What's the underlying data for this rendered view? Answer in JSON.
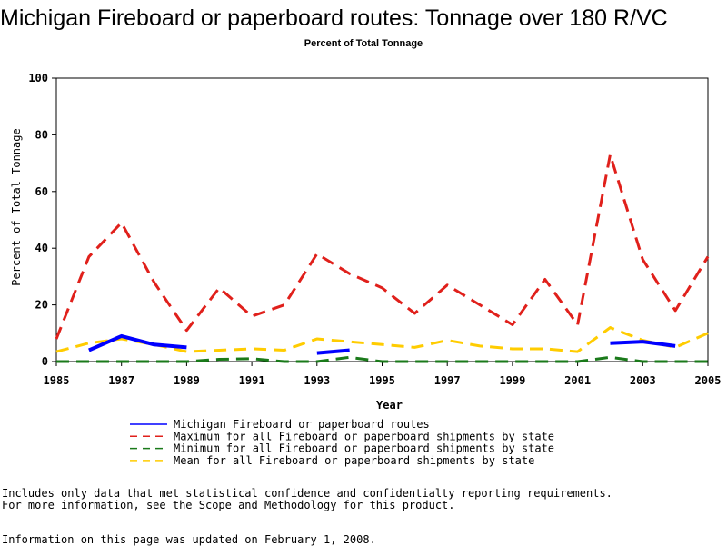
{
  "chart_data": {
    "type": "line",
    "title": "Michigan Fireboard or paperboard routes: Tonnage over 180 R/VC",
    "subtitle": "Percent of Total Tonnage",
    "xlabel": "Year",
    "ylabel": "Percent of Total Tonnage",
    "xlim": [
      1985,
      2005
    ],
    "ylim": [
      0,
      100
    ],
    "xticks": [
      "1985",
      "1987",
      "1989",
      "1991",
      "1993",
      "1995",
      "1997",
      "1999",
      "2001",
      "2003",
      "2005"
    ],
    "yticks": [
      "0",
      "20",
      "40",
      "60",
      "80",
      "100"
    ],
    "grid": false,
    "legend_position": "bottom",
    "series": [
      {
        "name": "Michigan Fireboard or paperboard routes",
        "color": "#0000ff",
        "style": "solid",
        "points": [
          [
            1986,
            4
          ],
          [
            1987,
            9
          ],
          [
            1988,
            6
          ],
          [
            1989,
            5
          ],
          [
            null,
            null
          ],
          [
            1993,
            3
          ],
          [
            1994,
            4
          ],
          [
            null,
            null
          ],
          [
            2002,
            6.5
          ],
          [
            2003,
            7
          ],
          [
            2004,
            5.5
          ]
        ]
      },
      {
        "name": "Maximum for all Fireboard or paperboard shipments by state",
        "color": "#e0201b",
        "style": "dashed",
        "points": [
          [
            1985,
            8
          ],
          [
            1986,
            37
          ],
          [
            1987,
            49
          ],
          [
            1988,
            28
          ],
          [
            1989,
            11
          ],
          [
            1990,
            26
          ],
          [
            1991,
            16
          ],
          [
            1992,
            20
          ],
          [
            1993,
            38
          ],
          [
            1994,
            31
          ],
          [
            1995,
            26
          ],
          [
            1996,
            17
          ],
          [
            1997,
            27
          ],
          [
            1998,
            20
          ],
          [
            1999,
            13
          ],
          [
            2000,
            29
          ],
          [
            2001,
            13
          ],
          [
            2002,
            73
          ],
          [
            2003,
            36
          ],
          [
            2004,
            18
          ],
          [
            2005,
            37
          ]
        ]
      },
      {
        "name": "Minimum for all Fireboard or paperboard shipments by state",
        "color": "#1a7a1a",
        "style": "dashed",
        "points": [
          [
            1985,
            0
          ],
          [
            1986,
            0
          ],
          [
            1987,
            0
          ],
          [
            1988,
            0
          ],
          [
            1989,
            0
          ],
          [
            1990,
            0.8
          ],
          [
            1991,
            1
          ],
          [
            1992,
            0
          ],
          [
            1993,
            0
          ],
          [
            1994,
            1.5
          ],
          [
            1995,
            0
          ],
          [
            1996,
            0
          ],
          [
            1997,
            0
          ],
          [
            1998,
            0
          ],
          [
            1999,
            0
          ],
          [
            2000,
            0
          ],
          [
            2001,
            0
          ],
          [
            2002,
            1.5
          ],
          [
            2003,
            0
          ],
          [
            2004,
            0
          ],
          [
            2005,
            0
          ]
        ]
      },
      {
        "name": "Mean for all Fireboard or paperboard shipments by state",
        "color": "#ffcc00",
        "style": "dashed",
        "points": [
          [
            1985,
            3.5
          ],
          [
            1986,
            6.5
          ],
          [
            1987,
            8
          ],
          [
            1988,
            6
          ],
          [
            1989,
            3.5
          ],
          [
            1990,
            4
          ],
          [
            1991,
            4.5
          ],
          [
            1992,
            4
          ],
          [
            1993,
            8
          ],
          [
            1994,
            7
          ],
          [
            1995,
            6
          ],
          [
            1996,
            5
          ],
          [
            1997,
            7.5
          ],
          [
            1998,
            5.5
          ],
          [
            1999,
            4.5
          ],
          [
            2000,
            4.5
          ],
          [
            2001,
            3.5
          ],
          [
            2002,
            12
          ],
          [
            2003,
            7.5
          ],
          [
            2004,
            5
          ],
          [
            2005,
            10
          ]
        ]
      }
    ]
  },
  "notes": {
    "line1": "Includes only data that met statistical confidence and confidentialty reporting requirements.",
    "line2": "For more information, see the Scope and Methodology for this product.",
    "updated": "Information on this page was updated on February 1, 2008."
  }
}
